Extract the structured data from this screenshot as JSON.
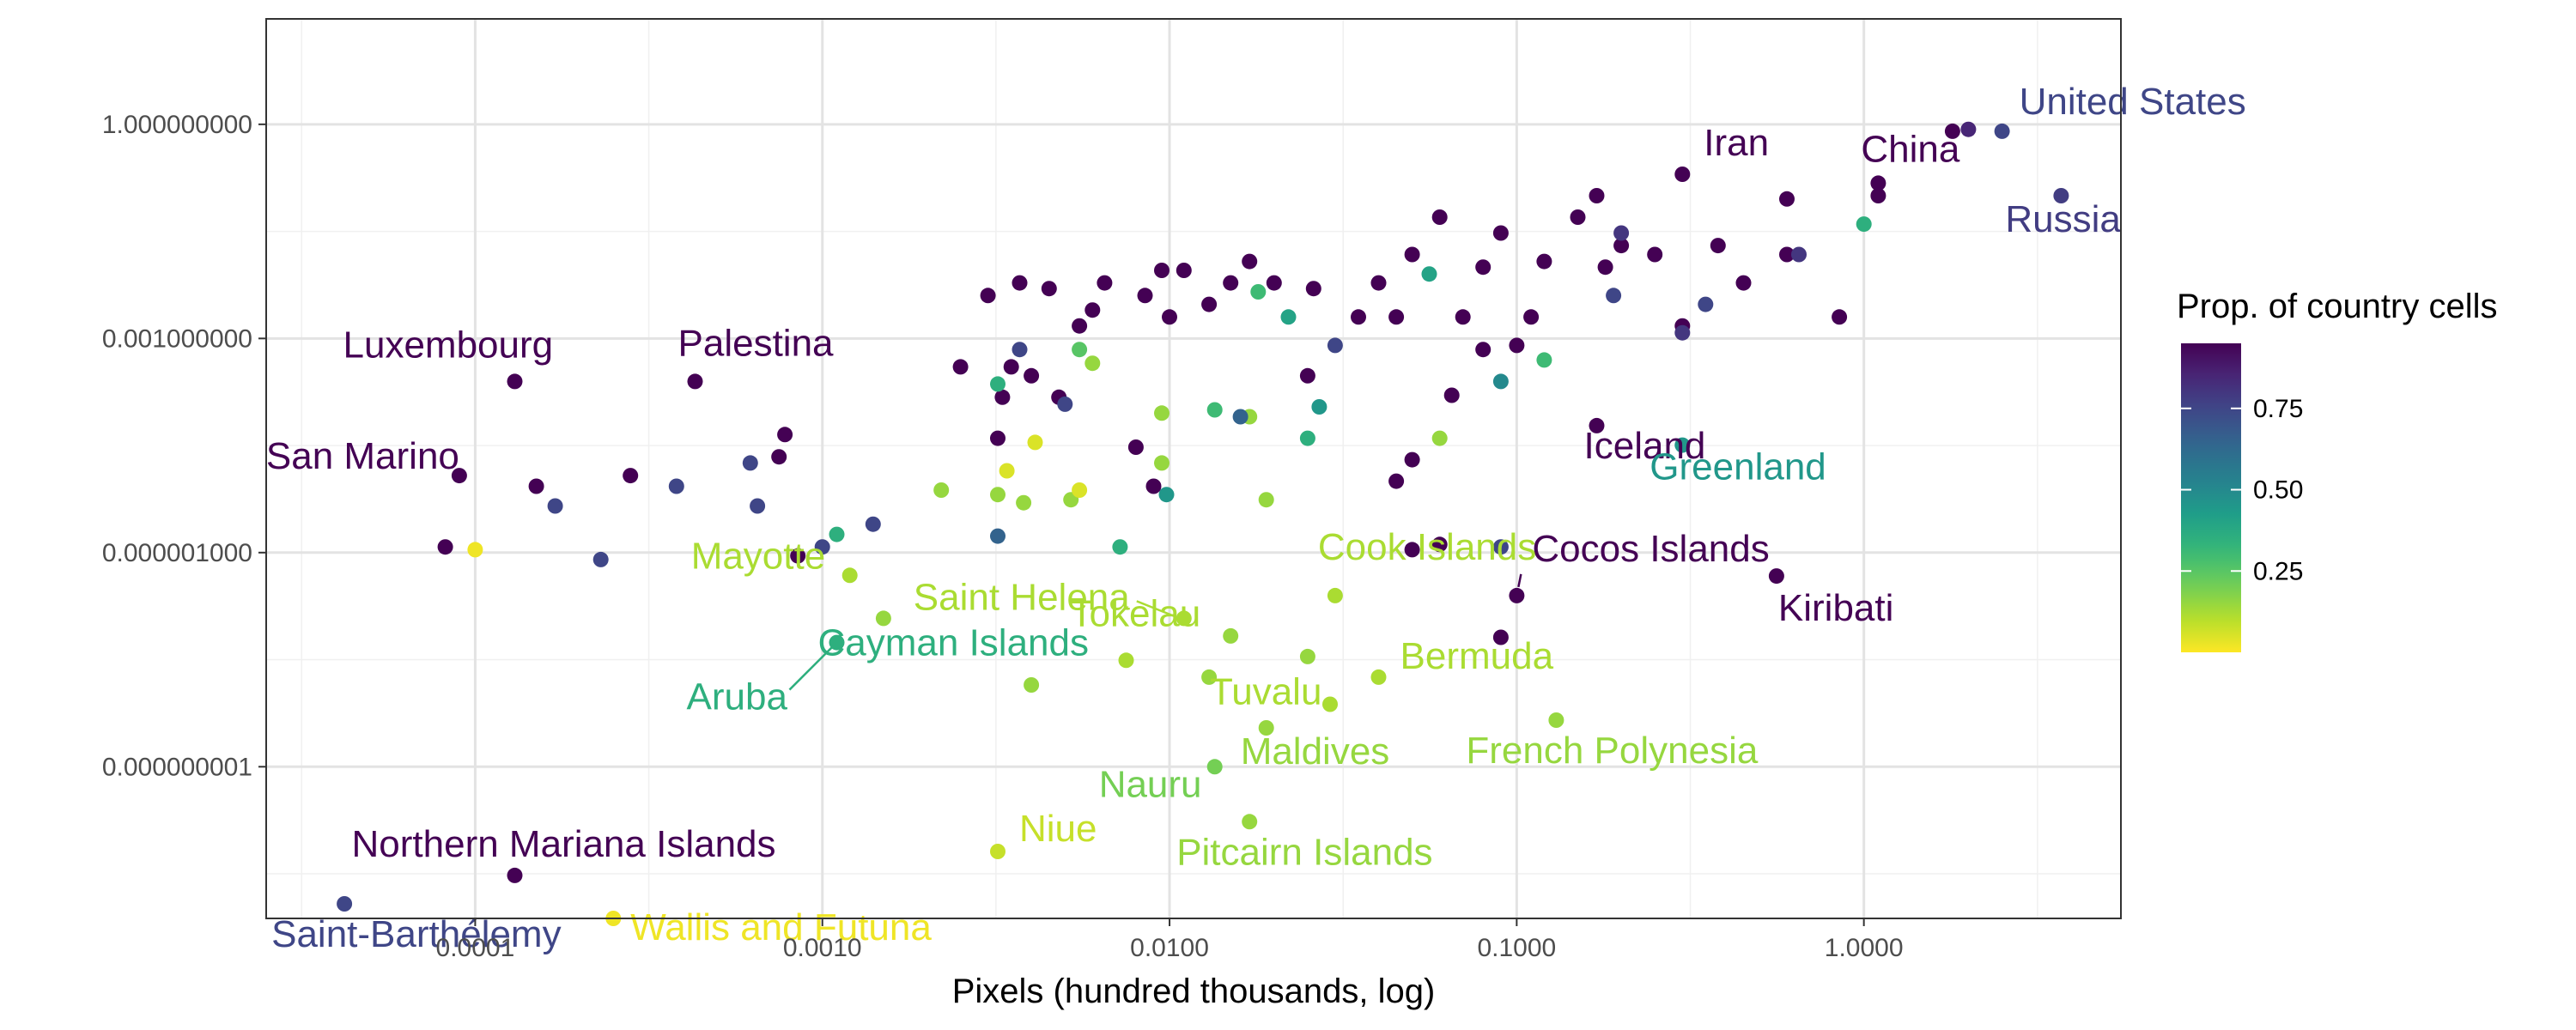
{
  "chart_data": {
    "type": "scatter",
    "xlabel": "Pixels (hundred thousands, log)",
    "ylabel": "",
    "x_scale": "log",
    "y_scale": "log",
    "xlim": [
      2.5e-05,
      5.5
    ],
    "ylim": [
      7.5e-12,
      30
    ],
    "x_ticks": [
      {
        "value": 0.0001,
        "label": "0.0001"
      },
      {
        "value": 0.001,
        "label": "0.0010"
      },
      {
        "value": 0.01,
        "label": "0.0100"
      },
      {
        "value": 0.1,
        "label": "0.1000"
      },
      {
        "value": 1,
        "label": "1.0000"
      }
    ],
    "y_ticks": [
      {
        "value": 1,
        "label": "1.000000000"
      },
      {
        "value": 0.001,
        "label": "0.001000000"
      },
      {
        "value": 1e-06,
        "label": "0.000001000"
      },
      {
        "value": 1e-09,
        "label": "0.000000001"
      }
    ],
    "grid": true,
    "legend": {
      "title": "Prop. of country cells",
      "position": "right",
      "type": "colorbar",
      "palette": "viridis (reversed: low = yellow, high = purple)",
      "range": [
        0.0,
        0.95
      ],
      "ticks": [
        {
          "value": 0.75,
          "label": "0.75"
        },
        {
          "value": 0.5,
          "label": "0.50"
        },
        {
          "value": 0.25,
          "label": "0.25"
        }
      ]
    },
    "labeled_points": [
      {
        "label": "United States",
        "x": 2.5,
        "y": 0.8,
        "prop": 0.75
      },
      {
        "label": "Iran",
        "x": 0.3,
        "y": 0.2,
        "prop": 0.95
      },
      {
        "label": "China",
        "x": 1.1,
        "y": 0.15,
        "prop": 0.95
      },
      {
        "label": "Russia",
        "x": 3.7,
        "y": 0.1,
        "prop": 0.78
      },
      {
        "label": "Palestina",
        "x": 0.00043,
        "y": 0.00025,
        "prop": 0.95
      },
      {
        "label": "Luxembourg",
        "x": 0.00013,
        "y": 0.00025,
        "prop": 0.95
      },
      {
        "label": "San Marino",
        "x": 9e-05,
        "y": 1.2e-05,
        "prop": 0.95
      },
      {
        "label": "Iceland",
        "x": 0.17,
        "y": 6e-05,
        "prop": 0.95
      },
      {
        "label": "Greenland",
        "x": 0.3,
        "y": 3.2e-05,
        "prop": 0.45
      },
      {
        "label": "Cocos Islands",
        "x": 0.1,
        "y": 2.5e-07,
        "prop": 0.95
      },
      {
        "label": "Kiribati",
        "x": 0.56,
        "y": 4.7e-07,
        "prop": 0.95
      },
      {
        "label": "Mayotte",
        "x": 0.0012,
        "y": 4.8e-07,
        "prop": 0.12
      },
      {
        "label": "Saint Helena",
        "x": 0.011,
        "y": 1.2e-07,
        "prop": 0.12
      },
      {
        "label": "Cook Islands",
        "x": 0.03,
        "y": 2.5e-07,
        "prop": 0.12
      },
      {
        "label": "Cayman Islands",
        "x": 0.0011,
        "y": 5.5e-08,
        "prop": 0.35
      },
      {
        "label": "Aruba",
        "x": 0.0011,
        "y": 5.5e-08,
        "prop": 0.35
      },
      {
        "label": "Tokelau",
        "x": 0.0075,
        "y": 3.1e-08,
        "prop": 0.12
      },
      {
        "label": "Bermuda",
        "x": 0.04,
        "y": 1.8e-08,
        "prop": 0.12
      },
      {
        "label": "Tuvalu",
        "x": 0.029,
        "y": 7.5e-09,
        "prop": 0.12
      },
      {
        "label": "French Polynesia",
        "x": 0.13,
        "y": 4.5e-09,
        "prop": 0.15
      },
      {
        "label": "Maldives",
        "x": 0.019,
        "y": 3.5e-09,
        "prop": 0.15
      },
      {
        "label": "Nauru",
        "x": 0.0135,
        "y": 1e-09,
        "prop": 0.2
      },
      {
        "label": "Pitcairn Islands",
        "x": 0.017,
        "y": 1.7e-10,
        "prop": 0.15
      },
      {
        "label": "Niue",
        "x": 0.0032,
        "y": 6.5e-11,
        "prop": 0.08
      },
      {
        "label": "Northern Mariana Islands",
        "x": 0.00013,
        "y": 3e-11,
        "prop": 0.95
      },
      {
        "label": "Saint-Barthélemy",
        "x": 4.2e-05,
        "y": 1.2e-11,
        "prop": 0.75
      },
      {
        "label": "Wallis and Futuna",
        "x": 0.00025,
        "y": 7.5e-12,
        "prop": 0.02
      }
    ],
    "unlabeled_points": [
      {
        "x": 2.0,
        "y": 0.85,
        "prop": 0.85
      },
      {
        "x": 1.8,
        "y": 0.8,
        "prop": 0.95
      },
      {
        "x": 1.1,
        "y": 0.1,
        "prop": 0.95
      },
      {
        "x": 1.0,
        "y": 0.04,
        "prop": 0.35
      },
      {
        "x": 0.85,
        "y": 0.002,
        "prop": 0.95
      },
      {
        "x": 0.6,
        "y": 0.09,
        "prop": 0.95
      },
      {
        "x": 0.6,
        "y": 0.015,
        "prop": 0.95
      },
      {
        "x": 0.65,
        "y": 0.015,
        "prop": 0.8
      },
      {
        "x": 0.38,
        "y": 0.02,
        "prop": 0.95
      },
      {
        "x": 0.45,
        "y": 0.006,
        "prop": 0.95
      },
      {
        "x": 0.35,
        "y": 0.003,
        "prop": 0.75
      },
      {
        "x": 0.3,
        "y": 0.0015,
        "prop": 0.95
      },
      {
        "x": 0.3,
        "y": 0.0012,
        "prop": 0.8
      },
      {
        "x": 0.2,
        "y": 0.02,
        "prop": 0.95
      },
      {
        "x": 0.25,
        "y": 0.015,
        "prop": 0.95
      },
      {
        "x": 0.17,
        "y": 0.1,
        "prop": 0.95
      },
      {
        "x": 0.15,
        "y": 0.05,
        "prop": 0.95
      },
      {
        "x": 0.2,
        "y": 0.03,
        "prop": 0.8
      },
      {
        "x": 0.18,
        "y": 0.01,
        "prop": 0.95
      },
      {
        "x": 0.19,
        "y": 0.004,
        "prop": 0.75
      },
      {
        "x": 0.12,
        "y": 0.012,
        "prop": 0.95
      },
      {
        "x": 0.11,
        "y": 0.002,
        "prop": 0.95
      },
      {
        "x": 0.1,
        "y": 0.0008,
        "prop": 0.95
      },
      {
        "x": 0.12,
        "y": 0.0005,
        "prop": 0.3
      },
      {
        "x": 0.09,
        "y": 0.03,
        "prop": 0.95
      },
      {
        "x": 0.08,
        "y": 0.01,
        "prop": 0.95
      },
      {
        "x": 0.07,
        "y": 0.002,
        "prop": 0.95
      },
      {
        "x": 0.08,
        "y": 0.0007,
        "prop": 0.95
      },
      {
        "x": 0.09,
        "y": 0.00025,
        "prop": 0.5
      },
      {
        "x": 0.065,
        "y": 0.00016,
        "prop": 0.95
      },
      {
        "x": 0.06,
        "y": 0.05,
        "prop": 0.95
      },
      {
        "x": 0.05,
        "y": 0.015,
        "prop": 0.95
      },
      {
        "x": 0.045,
        "y": 0.002,
        "prop": 0.95
      },
      {
        "x": 0.056,
        "y": 0.008,
        "prop": 0.4
      },
      {
        "x": 0.06,
        "y": 4e-05,
        "prop": 0.15
      },
      {
        "x": 0.05,
        "y": 2e-05,
        "prop": 0.95
      },
      {
        "x": 0.045,
        "y": 1e-05,
        "prop": 0.95
      },
      {
        "x": 0.04,
        "y": 0.006,
        "prop": 0.95
      },
      {
        "x": 0.035,
        "y": 0.002,
        "prop": 0.95
      },
      {
        "x": 0.03,
        "y": 0.0008,
        "prop": 0.75
      },
      {
        "x": 0.025,
        "y": 0.0003,
        "prop": 0.95
      },
      {
        "x": 0.026,
        "y": 0.005,
        "prop": 0.95
      },
      {
        "x": 0.022,
        "y": 0.002,
        "prop": 0.4
      },
      {
        "x": 0.02,
        "y": 0.006,
        "prop": 0.95
      },
      {
        "x": 0.018,
        "y": 0.0045,
        "prop": 0.3
      },
      {
        "x": 0.017,
        "y": 0.012,
        "prop": 0.95
      },
      {
        "x": 0.015,
        "y": 0.006,
        "prop": 0.95
      },
      {
        "x": 0.013,
        "y": 0.003,
        "prop": 0.95
      },
      {
        "x": 0.011,
        "y": 0.009,
        "prop": 0.95
      },
      {
        "x": 0.01,
        "y": 0.002,
        "prop": 0.95
      },
      {
        "x": 0.0095,
        "y": 0.009,
        "prop": 0.95
      },
      {
        "x": 0.0085,
        "y": 0.004,
        "prop": 0.95
      },
      {
        "x": 0.0065,
        "y": 0.006,
        "prop": 0.95
      },
      {
        "x": 0.006,
        "y": 0.0025,
        "prop": 0.95
      },
      {
        "x": 0.0055,
        "y": 0.0015,
        "prop": 0.95
      },
      {
        "x": 0.0045,
        "y": 0.005,
        "prop": 0.95
      },
      {
        "x": 0.0037,
        "y": 0.006,
        "prop": 0.95
      },
      {
        "x": 0.003,
        "y": 0.004,
        "prop": 0.95
      },
      {
        "x": 0.0025,
        "y": 0.0004,
        "prop": 0.95
      },
      {
        "x": 0.0035,
        "y": 0.0004,
        "prop": 0.95
      },
      {
        "x": 0.004,
        "y": 0.0003,
        "prop": 0.95
      },
      {
        "x": 0.0048,
        "y": 0.00015,
        "prop": 0.95
      },
      {
        "x": 0.005,
        "y": 0.00012,
        "prop": 0.75
      },
      {
        "x": 0.0033,
        "y": 0.00015,
        "prop": 0.95
      },
      {
        "x": 0.0032,
        "y": 4e-05,
        "prop": 0.95
      },
      {
        "x": 0.0032,
        "y": 0.00023,
        "prop": 0.35
      },
      {
        "x": 0.0037,
        "y": 0.0007,
        "prop": 0.75
      },
      {
        "x": 0.0055,
        "y": 0.0007,
        "prop": 0.25
      },
      {
        "x": 0.006,
        "y": 0.00045,
        "prop": 0.15
      },
      {
        "x": 0.008,
        "y": 3e-05,
        "prop": 0.95
      },
      {
        "x": 0.0095,
        "y": 9e-05,
        "prop": 0.15
      },
      {
        "x": 0.0135,
        "y": 0.0001,
        "prop": 0.3
      },
      {
        "x": 0.017,
        "y": 8e-05,
        "prop": 0.15
      },
      {
        "x": 0.016,
        "y": 8e-05,
        "prop": 0.65
      },
      {
        "x": 0.025,
        "y": 4e-05,
        "prop": 0.35
      },
      {
        "x": 0.027,
        "y": 0.00011,
        "prop": 0.45
      },
      {
        "x": 0.0095,
        "y": 1.8e-05,
        "prop": 0.15
      },
      {
        "x": 0.0098,
        "y": 6.5e-06,
        "prop": 0.45
      },
      {
        "x": 0.009,
        "y": 8.5e-06,
        "prop": 0.95
      },
      {
        "x": 0.019,
        "y": 5.5e-06,
        "prop": 0.15
      },
      {
        "x": 0.0072,
        "y": 1.2e-06,
        "prop": 0.35
      },
      {
        "x": 0.0022,
        "y": 7.5e-06,
        "prop": 0.15
      },
      {
        "x": 0.0032,
        "y": 6.5e-06,
        "prop": 0.15
      },
      {
        "x": 0.0038,
        "y": 5e-06,
        "prop": 0.15
      },
      {
        "x": 0.0052,
        "y": 5.5e-06,
        "prop": 0.15
      },
      {
        "x": 0.0055,
        "y": 7.5e-06,
        "prop": 0.05
      },
      {
        "x": 0.0034,
        "y": 1.4e-05,
        "prop": 0.05
      },
      {
        "x": 0.0041,
        "y": 3.5e-05,
        "prop": 0.05
      },
      {
        "x": 0.0032,
        "y": 1.7e-06,
        "prop": 0.65
      },
      {
        "x": 0.0014,
        "y": 2.5e-06,
        "prop": 0.75
      },
      {
        "x": 0.0011,
        "y": 1.8e-06,
        "prop": 0.35
      },
      {
        "x": 0.001,
        "y": 1.2e-06,
        "prop": 0.75
      },
      {
        "x": 0.00085,
        "y": 9e-07,
        "prop": 0.95
      },
      {
        "x": 0.00065,
        "y": 4.5e-06,
        "prop": 0.75
      },
      {
        "x": 0.00062,
        "y": 1.8e-05,
        "prop": 0.75
      },
      {
        "x": 0.00075,
        "y": 2.2e-05,
        "prop": 0.95
      },
      {
        "x": 0.00078,
        "y": 4.5e-05,
        "prop": 0.95
      },
      {
        "x": 0.00038,
        "y": 8.5e-06,
        "prop": 0.75
      },
      {
        "x": 0.00028,
        "y": 1.2e-05,
        "prop": 0.95
      },
      {
        "x": 0.00017,
        "y": 4.5e-06,
        "prop": 0.75
      },
      {
        "x": 0.00015,
        "y": 8.5e-06,
        "prop": 0.95
      },
      {
        "x": 0.00023,
        "y": 8e-07,
        "prop": 0.75
      },
      {
        "x": 8.2e-05,
        "y": 1.2e-06,
        "prop": 0.95
      },
      {
        "x": 0.0001,
        "y": 1.1e-06,
        "prop": 0.02
      },
      {
        "x": 0.09,
        "y": 1.2e-06,
        "prop": 0.75
      },
      {
        "x": 0.06,
        "y": 1.3e-06,
        "prop": 0.95
      },
      {
        "x": 0.05,
        "y": 1.1e-06,
        "prop": 0.95
      },
      {
        "x": 0.09,
        "y": 6.5e-08,
        "prop": 0.95
      },
      {
        "x": 0.015,
        "y": 6.8e-08,
        "prop": 0.15
      },
      {
        "x": 0.025,
        "y": 3.5e-08,
        "prop": 0.15
      },
      {
        "x": 0.013,
        "y": 1.8e-08,
        "prop": 0.15
      },
      {
        "x": 0.004,
        "y": 1.4e-08,
        "prop": 0.15
      },
      {
        "x": 0.0015,
        "y": 1.2e-07,
        "prop": 0.15
      }
    ]
  }
}
